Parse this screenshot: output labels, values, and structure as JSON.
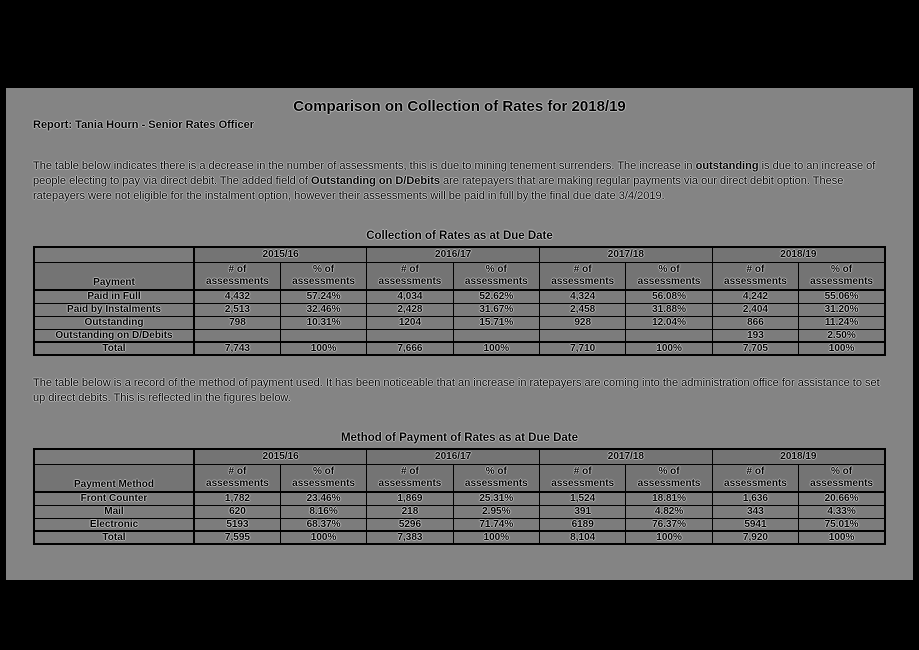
{
  "colors": {
    "canvas_bg": "#000000",
    "page_bg": "#848484",
    "header_cell_bg": "#747474",
    "body_cell_bg": "#7c7c7c",
    "text": "#000000",
    "border": "#000000"
  },
  "doc": {
    "title": "Comparison on Collection of Rates for 2018/19",
    "byline": "Report: Tania Hourn - Senior Rates Officer",
    "paragraph1": {
      "part1": "The table below indicates there is a decrease in the number of assessments, this is due to mining tenement surrenders. The increase in ",
      "bold1": "outstanding",
      "part2": " is due to an increase of people electing to pay via direct debit. The added field of ",
      "bold2": "Outstanding on D/Debits",
      "part3": " are ratepayers that are making regular payments via our direct debit option. These ratepayers were not eligible for the instalment option, however their assessments will be paid in full by the final due date 3/4/2019."
    },
    "paragraph2": "The table below is a record of the method of payment used. It has been noticeable that an increase in ratepayers are coming into the administration office for assistance to set up direct debits. This is reflected in the figures below."
  },
  "table1": {
    "title": "Collection of Rates as at Due Date",
    "row_header": "Payment",
    "years": [
      "2015/16",
      "2016/17",
      "2017/18",
      "2018/19"
    ],
    "subheader_num": "# of assessments",
    "subheader_pct": "% of assessments",
    "rows": [
      {
        "label": "Paid in Full",
        "values": [
          "4,432",
          "57.24%",
          "4,034",
          "52.62%",
          "4,324",
          "56.08%",
          "4,242",
          "55.06%"
        ]
      },
      {
        "label": "Paid by Instalments",
        "values": [
          "2,513",
          "32.46%",
          "2,428",
          "31.67%",
          "2,458",
          "31.88%",
          "2,404",
          "31.20%"
        ]
      },
      {
        "label": "Outstanding",
        "values": [
          "798",
          "10.31%",
          "1204",
          "15.71%",
          "928",
          "12.04%",
          "866",
          "11.24%"
        ]
      },
      {
        "label": "Outstanding on D/Debits",
        "values": [
          "",
          "",
          "",
          "",
          "",
          "",
          "193",
          "2.50%"
        ]
      },
      {
        "label": "Total",
        "values": [
          "7,743",
          "100%",
          "7,666",
          "100%",
          "7,710",
          "100%",
          "7,705",
          "100%"
        ]
      }
    ]
  },
  "table2": {
    "title": "Method of Payment of Rates as at Due Date",
    "row_header": "Payment Method",
    "years": [
      "2015/16",
      "2016/17",
      "2017/18",
      "2018/19"
    ],
    "subheader_num": "# of assessments",
    "subheader_pct": "% of assessments",
    "rows": [
      {
        "label": "Front Counter",
        "values": [
          "1,782",
          "23.46%",
          "1,869",
          "25.31%",
          "1,524",
          "18.81%",
          "1,636",
          "20.66%"
        ]
      },
      {
        "label": "Mail",
        "values": [
          "620",
          "8.16%",
          "218",
          "2.95%",
          "391",
          "4.82%",
          "343",
          "4.33%"
        ]
      },
      {
        "label": "Electronic",
        "values": [
          "5193",
          "68.37%",
          "5296",
          "71.74%",
          "6189",
          "76.37%",
          "5941",
          "75.01%"
        ]
      },
      {
        "label": "Total",
        "values": [
          "7,595",
          "100%",
          "7,383",
          "100%",
          "8,104",
          "100%",
          "7,920",
          "100%"
        ]
      }
    ]
  }
}
